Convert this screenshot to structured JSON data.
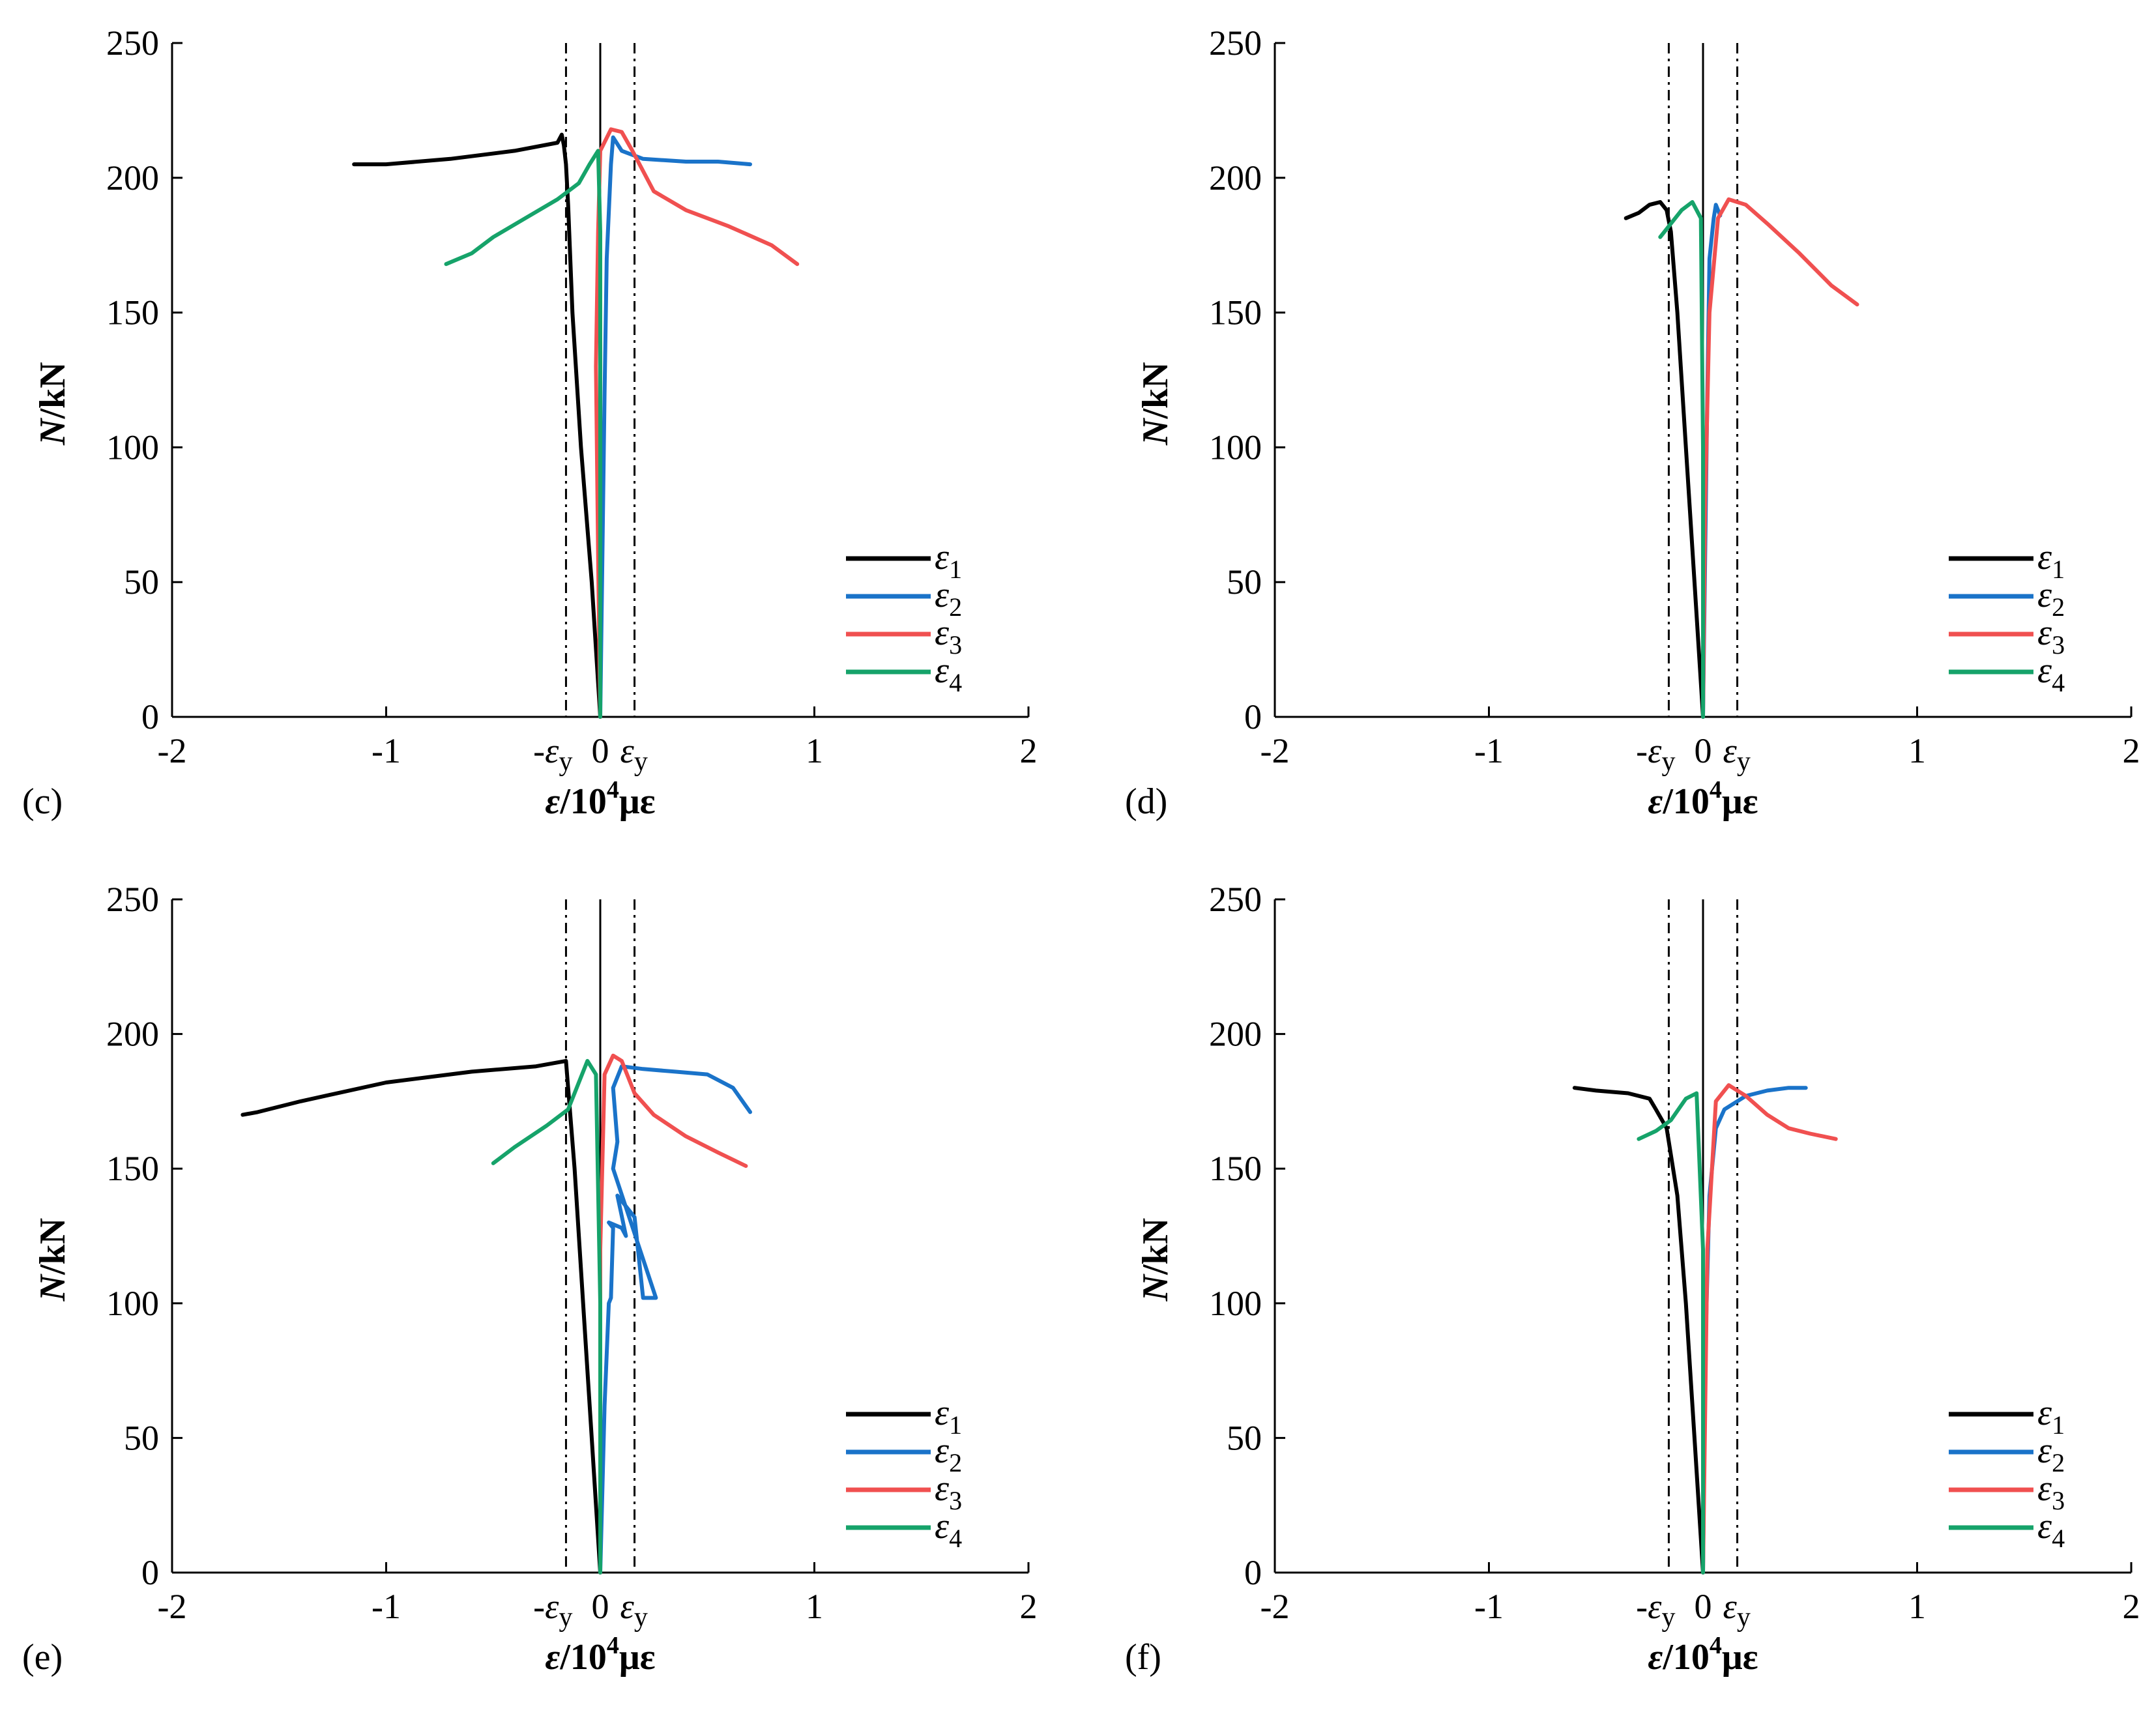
{
  "colors": {
    "eps1": "#000000",
    "eps2": "#1a73c9",
    "eps3": "#f05050",
    "eps4": "#16a36a",
    "axis": "#000000"
  },
  "chart_data": [
    {
      "type": "line",
      "panel_label": "(c)",
      "xlabel_italic": "ε",
      "xlabel_rest": "/10",
      "xlabel_sup": "4",
      "xlabel_unit": "με",
      "ylabel_italic": "N",
      "ylabel_rest": "/kN",
      "xlim": [
        -2,
        2
      ],
      "ylim": [
        0,
        250
      ],
      "xticks": [
        "-2",
        "-1",
        "0",
        "1",
        "2"
      ],
      "yticks": [
        "0",
        "50",
        "100",
        "150",
        "200",
        "250"
      ],
      "ref_lines": {
        "neg_label": "-ε",
        "neg_sub": "y",
        "pos_label": "ε",
        "pos_sub": "y",
        "value": 0.16
      },
      "series": [
        {
          "name": "ε",
          "sub": "1",
          "color_key": "eps1",
          "x": [
            0,
            -0.04,
            -0.09,
            -0.13,
            -0.15,
            -0.16,
            -0.17,
            -0.18,
            -0.2,
            -0.4,
            -0.7,
            -1.0,
            -1.15
          ],
          "y": [
            0,
            50,
            100,
            150,
            190,
            205,
            212,
            216,
            213,
            210,
            207,
            205,
            205
          ]
        },
        {
          "name": "ε",
          "sub": "2",
          "color_key": "eps2",
          "x": [
            0,
            0.01,
            0.02,
            0.03,
            0.05,
            0.06,
            0.1,
            0.2,
            0.4,
            0.55,
            0.7
          ],
          "y": [
            0,
            60,
            120,
            170,
            205,
            215,
            210,
            207,
            206,
            206,
            205
          ]
        },
        {
          "name": "ε",
          "sub": "3",
          "color_key": "eps3",
          "x": [
            0,
            -0.01,
            -0.02,
            -0.01,
            0.0,
            0.05,
            0.1,
            0.15,
            0.25,
            0.4,
            0.6,
            0.8,
            0.92
          ],
          "y": [
            0,
            60,
            130,
            180,
            210,
            218,
            217,
            210,
            195,
            188,
            182,
            175,
            168
          ]
        },
        {
          "name": "ε",
          "sub": "4",
          "color_key": "eps4",
          "x": [
            0,
            0.0,
            0.0,
            -0.01,
            -0.05,
            -0.1,
            -0.2,
            -0.35,
            -0.5,
            -0.6,
            -0.72
          ],
          "y": [
            0,
            100,
            180,
            210,
            205,
            198,
            192,
            185,
            178,
            172,
            168
          ]
        }
      ]
    },
    {
      "type": "line",
      "panel_label": "(d)",
      "xlabel_italic": "ε",
      "xlabel_rest": "/10",
      "xlabel_sup": "4",
      "xlabel_unit": "με",
      "ylabel_italic": "N",
      "ylabel_rest": "/kN",
      "xlim": [
        -2,
        2
      ],
      "ylim": [
        0,
        250
      ],
      "xticks": [
        "-2",
        "-1",
        "0",
        "1",
        "2"
      ],
      "yticks": [
        "0",
        "50",
        "100",
        "150",
        "200",
        "250"
      ],
      "ref_lines": {
        "neg_label": "-ε",
        "neg_sub": "y",
        "pos_label": "ε",
        "pos_sub": "y",
        "value": 0.16
      },
      "series": [
        {
          "name": "ε",
          "sub": "1",
          "color_key": "eps1",
          "x": [
            0,
            -0.04,
            -0.08,
            -0.12,
            -0.15,
            -0.17,
            -0.2,
            -0.25,
            -0.3,
            -0.36
          ],
          "y": [
            0,
            50,
            100,
            150,
            180,
            188,
            191,
            190,
            187,
            185
          ]
        },
        {
          "name": "ε",
          "sub": "2",
          "color_key": "eps2",
          "x": [
            0,
            0.01,
            0.02,
            0.03,
            0.05,
            0.06,
            0.08
          ],
          "y": [
            0,
            60,
            120,
            170,
            185,
            190,
            186
          ]
        },
        {
          "name": "ε",
          "sub": "3",
          "color_key": "eps3",
          "x": [
            0,
            0.01,
            0.03,
            0.07,
            0.12,
            0.2,
            0.3,
            0.45,
            0.6,
            0.72
          ],
          "y": [
            0,
            80,
            150,
            185,
            192,
            190,
            183,
            172,
            160,
            153
          ]
        },
        {
          "name": "ε",
          "sub": "4",
          "color_key": "eps4",
          "x": [
            0,
            0.0,
            -0.01,
            -0.05,
            -0.1,
            -0.15,
            -0.2
          ],
          "y": [
            0,
            100,
            185,
            191,
            188,
            183,
            178
          ]
        }
      ]
    },
    {
      "type": "line",
      "panel_label": "(e)",
      "xlabel_italic": "ε",
      "xlabel_rest": "/10",
      "xlabel_sup": "4",
      "xlabel_unit": "με",
      "ylabel_italic": "N",
      "ylabel_rest": "/kN",
      "xlim": [
        -2,
        2
      ],
      "ylim": [
        0,
        250
      ],
      "xticks": [
        "-2",
        "-1",
        "0",
        "1",
        "2"
      ],
      "yticks": [
        "0",
        "50",
        "100",
        "150",
        "200",
        "250"
      ],
      "ref_lines": {
        "neg_label": "-ε",
        "neg_sub": "y",
        "pos_label": "ε",
        "pos_sub": "y",
        "value": 0.16
      },
      "series": [
        {
          "name": "ε",
          "sub": "1",
          "color_key": "eps1",
          "x": [
            0,
            -0.04,
            -0.08,
            -0.12,
            -0.15,
            -0.16,
            -0.3,
            -0.6,
            -1.0,
            -1.4,
            -1.6,
            -1.67
          ],
          "y": [
            0,
            50,
            100,
            150,
            180,
            190,
            188,
            186,
            182,
            175,
            171,
            170
          ]
        },
        {
          "name": "ε",
          "sub": "2",
          "color_key": "eps2",
          "x": [
            0,
            0.02,
            0.04,
            0.05,
            0.06,
            0.04,
            0.1,
            0.12,
            0.08,
            0.16,
            0.2,
            0.26,
            0.06,
            0.08,
            0.06,
            0.1,
            0.2,
            0.35,
            0.5,
            0.62,
            0.7
          ],
          "y": [
            0,
            62,
            100,
            102,
            128,
            130,
            128,
            125,
            140,
            132,
            102,
            102,
            150,
            160,
            180,
            188,
            187,
            186,
            185,
            180,
            171
          ]
        },
        {
          "name": "ε",
          "sub": "3",
          "color_key": "eps3",
          "x": [
            0,
            0.0,
            0.02,
            0.06,
            0.1,
            0.16,
            0.25,
            0.4,
            0.55,
            0.68
          ],
          "y": [
            0,
            120,
            185,
            192,
            190,
            178,
            170,
            162,
            156,
            151
          ]
        },
        {
          "name": "ε",
          "sub": "4",
          "color_key": "eps4",
          "x": [
            0,
            0.0,
            -0.02,
            -0.06,
            -0.1,
            -0.15,
            -0.25,
            -0.4,
            -0.5
          ],
          "y": [
            0,
            100,
            185,
            190,
            182,
            172,
            166,
            158,
            152
          ]
        }
      ]
    },
    {
      "type": "line",
      "panel_label": "(f)",
      "xlabel_italic": "ε",
      "xlabel_rest": "/10",
      "xlabel_sup": "4",
      "xlabel_unit": "με",
      "ylabel_italic": "N",
      "ylabel_rest": "/kN",
      "xlim": [
        -2,
        2
      ],
      "ylim": [
        0,
        250
      ],
      "xticks": [
        "-2",
        "-1",
        "0",
        "1",
        "2"
      ],
      "yticks": [
        "0",
        "50",
        "100",
        "150",
        "200",
        "250"
      ],
      "ref_lines": {
        "neg_label": "-ε",
        "neg_sub": "y",
        "pos_label": "ε",
        "pos_sub": "y",
        "value": 0.16
      },
      "series": [
        {
          "name": "ε",
          "sub": "1",
          "color_key": "eps1",
          "x": [
            0,
            -0.04,
            -0.08,
            -0.12,
            -0.17,
            -0.22,
            -0.25,
            -0.35,
            -0.5,
            -0.6
          ],
          "y": [
            0,
            50,
            100,
            140,
            165,
            172,
            176,
            178,
            179,
            180
          ]
        },
        {
          "name": "ε",
          "sub": "2",
          "color_key": "eps2",
          "x": [
            0,
            0.01,
            0.03,
            0.06,
            0.1,
            0.2,
            0.3,
            0.4,
            0.48
          ],
          "y": [
            0,
            80,
            140,
            165,
            172,
            177,
            179,
            180,
            180
          ]
        },
        {
          "name": "ε",
          "sub": "3",
          "color_key": "eps3",
          "x": [
            0,
            0.02,
            0.06,
            0.12,
            0.2,
            0.3,
            0.4,
            0.5,
            0.62
          ],
          "y": [
            0,
            120,
            175,
            181,
            177,
            170,
            165,
            163,
            161
          ]
        },
        {
          "name": "ε",
          "sub": "4",
          "color_key": "eps4",
          "x": [
            0,
            0.0,
            -0.03,
            -0.08,
            -0.15,
            -0.22,
            -0.3
          ],
          "y": [
            0,
            120,
            178,
            176,
            168,
            164,
            161
          ]
        }
      ]
    }
  ]
}
